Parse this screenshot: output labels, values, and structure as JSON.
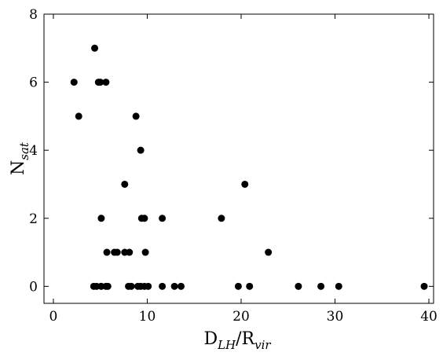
{
  "chart_data": {
    "type": "scatter",
    "xlabel": {
      "main": "D",
      "sub": "LH",
      "sep": "/R",
      "sub2": "vir"
    },
    "ylabel": {
      "main": "N",
      "sub": "sat"
    },
    "xlim": [
      -1,
      40.5
    ],
    "ylim": [
      -0.5,
      8
    ],
    "xticks": [
      0,
      10,
      20,
      30,
      40
    ],
    "yticks": [
      0,
      2,
      4,
      6,
      8
    ],
    "grid": false,
    "marker_color": "#000000",
    "x": [
      2.2,
      2.7,
      4.4,
      4.8,
      5.0,
      5.6,
      8.8,
      9.3,
      7.6,
      5.1,
      9.4,
      9.7,
      11.6,
      5.7,
      6.5,
      6.8,
      7.6,
      8.1,
      9.8,
      17.9,
      20.4,
      22.9,
      4.3,
      4.6,
      5.1,
      5.6,
      5.8,
      8.0,
      8.3,
      9.0,
      9.3,
      9.7,
      10.1,
      11.6,
      12.9,
      13.6,
      19.7,
      20.9,
      26.1,
      28.5,
      30.4,
      39.5
    ],
    "y": [
      6,
      5,
      7,
      6,
      6,
      6,
      5,
      4,
      3,
      2,
      2,
      2,
      2,
      1,
      1,
      1,
      1,
      1,
      1,
      2,
      3,
      1,
      0,
      0,
      0,
      0,
      0,
      0,
      0,
      0,
      0,
      0,
      0,
      0,
      0,
      0,
      0,
      0,
      0,
      0,
      0,
      0
    ]
  }
}
